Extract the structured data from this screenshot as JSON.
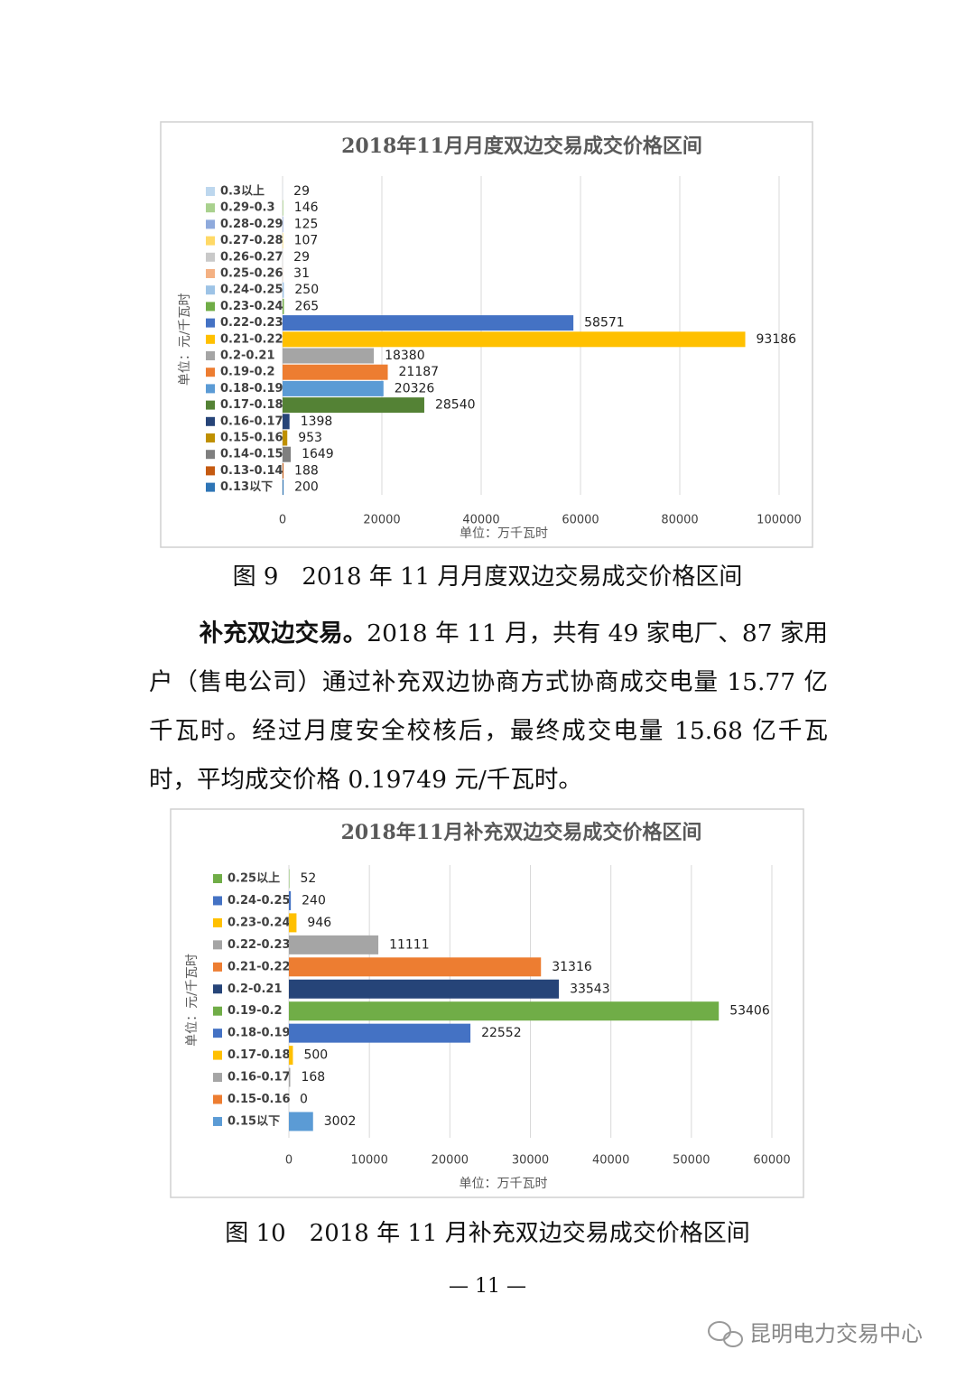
{
  "chart_data": [
    {
      "type": "bar",
      "orientation": "horizontal",
      "title": "2018年11月月度双边交易成交价格区间",
      "y_label": "单位：元/千瓦时",
      "x_label": "单位：万千瓦时",
      "categories": [
        "0.3以上",
        "0.29-0.3",
        "0.28-0.29",
        "0.27-0.28",
        "0.26-0.27",
        "0.25-0.26",
        "0.24-0.25",
        "0.23-0.24",
        "0.22-0.23",
        "0.21-0.22",
        "0.2-0.21",
        "0.19-0.2",
        "0.18-0.19",
        "0.17-0.18",
        "0.16-0.17",
        "0.15-0.16",
        "0.14-0.15",
        "0.13-0.14",
        "0.13以下"
      ],
      "values": [
        29,
        146,
        125,
        107,
        29,
        31,
        250,
        265,
        58571,
        93186,
        18380,
        21187,
        20326,
        28540,
        1398,
        953,
        1649,
        188,
        200
      ],
      "colors": [
        "#bdd7ee",
        "#a9d18e",
        "#8faadc",
        "#ffd966",
        "#c9c9c9",
        "#f4b183",
        "#9dc3e6",
        "#70ad47",
        "#4472c4",
        "#ffc000",
        "#a5a5a5",
        "#ed7d31",
        "#5b9bd5",
        "#548235",
        "#264478",
        "#bf9000",
        "#7f7f7f",
        "#c55a11",
        "#2e75b6"
      ],
      "xlim": [
        0,
        100000
      ],
      "xticks": [
        0,
        20000,
        40000,
        60000,
        80000,
        100000
      ],
      "grid": true
    },
    {
      "type": "bar",
      "orientation": "horizontal",
      "title": "2018年11月补充双边交易成交价格区间",
      "y_label": "单位：元/千瓦时",
      "x_label": "单位：万千瓦时",
      "categories": [
        "0.25以上",
        "0.24-0.25",
        "0.23-0.24",
        "0.22-0.23",
        "0.21-0.22",
        "0.2-0.21",
        "0.19-0.2",
        "0.18-0.19",
        "0.17-0.18",
        "0.16-0.17",
        "0.15-0.16",
        "0.15以下"
      ],
      "values": [
        52,
        240,
        946,
        11111,
        31316,
        33543,
        53406,
        22552,
        500,
        168,
        0,
        3002
      ],
      "colors": [
        "#70ad47",
        "#4472c4",
        "#ffc000",
        "#a5a5a5",
        "#ed7d31",
        "#264478",
        "#70ad47",
        "#4472c4",
        "#ffc000",
        "#a5a5a5",
        "#ed7d31",
        "#5b9bd5"
      ],
      "xlim": [
        0,
        60000
      ],
      "xticks": [
        0,
        10000,
        20000,
        30000,
        40000,
        50000,
        60000
      ],
      "grid": true
    }
  ],
  "captions": [
    "图 9　2018 年 11 月月度双边交易成交价格区间",
    "图 10　2018 年 11 月补充双边交易成交价格区间"
  ],
  "paragraph": {
    "lead": "补充双边交易。",
    "body": "2018 年 11 月，共有 49 家电厂、87 家用户（售电公司）通过补充双边协商方式协商成交电量 15.77 亿千瓦时。经过月度安全校核后，最终成交电量 15.68 亿千瓦时，平均成交价格 0.19749 元/千瓦时。"
  },
  "page_number": "— 11 —",
  "watermark": "昆明电力交易中心"
}
